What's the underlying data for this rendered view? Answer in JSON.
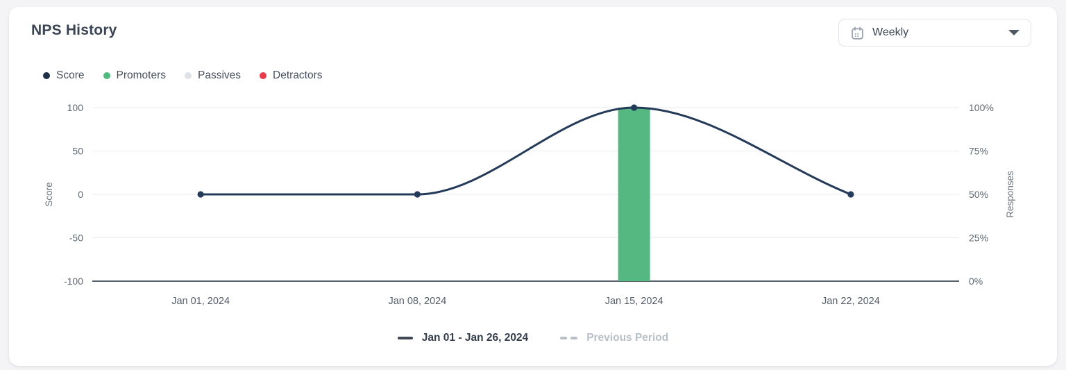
{
  "card": {
    "title": "NPS History"
  },
  "period_selector": {
    "value": "Weekly",
    "icon": "calendar-icon",
    "chevron": "chevron-down-icon"
  },
  "legend": [
    {
      "label": "Score",
      "color": "#1f2e49"
    },
    {
      "label": "Promoters",
      "color": "#4fba7e"
    },
    {
      "label": "Passives",
      "color": "#dfe2e6"
    },
    {
      "label": "Detractors",
      "color": "#ed3b4c"
    }
  ],
  "chart_data": {
    "type": "line",
    "title": "NPS History",
    "x": [
      "Jan 01, 2024",
      "Jan 08, 2024",
      "Jan 15, 2024",
      "Jan 22, 2024"
    ],
    "series": [
      {
        "name": "Score",
        "type": "line",
        "axis": "left",
        "color": "#233a59",
        "values": [
          0,
          0,
          100,
          0
        ]
      },
      {
        "name": "Promoters",
        "type": "bar",
        "axis": "right",
        "color": "#55b880",
        "values_pct": [
          0,
          0,
          100,
          0
        ]
      },
      {
        "name": "Passives",
        "type": "bar",
        "axis": "right",
        "color": "#dfe2e6",
        "values_pct": [
          0,
          0,
          0,
          0
        ]
      },
      {
        "name": "Detractors",
        "type": "bar",
        "axis": "right",
        "color": "#ed3b4c",
        "values_pct": [
          0,
          0,
          0,
          0
        ]
      }
    ],
    "left_axis": {
      "label": "Score",
      "ticks": [
        "100",
        "50",
        "0",
        "-50",
        "-100"
      ],
      "range": [
        -100,
        100
      ]
    },
    "right_axis": {
      "label": "Responses",
      "ticks": [
        "100%",
        "75%",
        "50%",
        "25%",
        "0%"
      ],
      "range": [
        0,
        100
      ]
    },
    "grid": true,
    "legend_position": "top-left",
    "colors": {
      "grid": "#eaebed",
      "axis_line": "#414b58",
      "tick_text": "#5e6772",
      "axis_title_text": "#6a727d",
      "x_label_text": "#555e6a"
    }
  },
  "footer_legend": {
    "current": "Jan 01 - Jan 26, 2024",
    "current_color": "#3f4854",
    "current_text_color": "#343e4d",
    "previous": "Previous Period",
    "previous_color": "#b9bfc7",
    "previous_text_color": "#b9bfc7"
  }
}
